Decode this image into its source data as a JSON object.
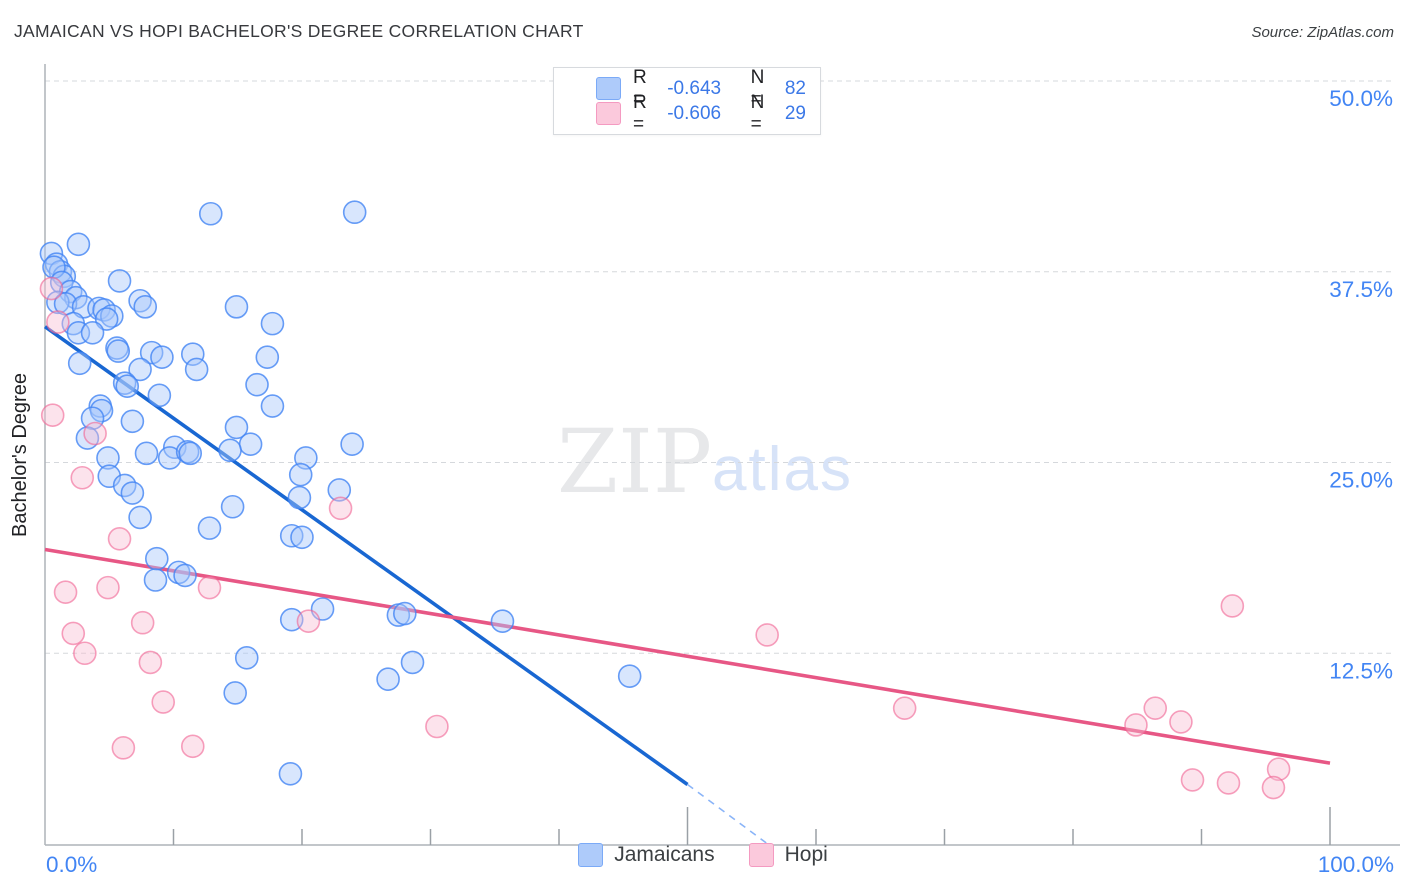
{
  "header": {
    "title": "JAMAICAN VS HOPI BACHELOR'S DEGREE CORRELATION CHART",
    "source": "Source: ZipAtlas.com"
  },
  "legend_box": {
    "rows": [
      {
        "series": "Jamaicans",
        "r_label": "R =",
        "r_value": "-0.643",
        "n_label": "N =",
        "n_value": "82"
      },
      {
        "series": "Hopi",
        "r_label": "R =",
        "r_value": "-0.606",
        "n_label": "N =",
        "n_value": "29"
      }
    ]
  },
  "watermark": {
    "zip": "ZIP",
    "atlas": "atlas"
  },
  "axes": {
    "y_label": "Bachelor's Degree",
    "x_min_label": "0.0%",
    "x_max_label": "100.0%",
    "y_ticks": [
      {
        "value": 50,
        "label": "50.0%"
      },
      {
        "value": 37.5,
        "label": "37.5%"
      },
      {
        "value": 25,
        "label": "25.0%"
      },
      {
        "value": 12.5,
        "label": "12.5%"
      }
    ]
  },
  "bottom_legend": [
    {
      "label": "Jamaicans",
      "color": "blue"
    },
    {
      "label": "Hopi",
      "color": "pink"
    }
  ],
  "colors": {
    "blue_fill": "#a8c7fa",
    "blue_stroke": "#4285f4",
    "pink_fill": "#f9bcd2",
    "pink_stroke": "#f06292",
    "blue_line": "#1967d2",
    "blue_line_dash": "#8ab4f8",
    "pink_line": "#e75785",
    "grid": "#d5d8dc",
    "axis": "#aeb3b9",
    "tick": "#9aa0a6",
    "tick_label": "#4285f4"
  },
  "chart_data": {
    "type": "scatter",
    "title": "JAMAICAN VS HOPI BACHELOR'S DEGREE CORRELATION CHART",
    "xlabel_range": [
      0,
      100
    ],
    "ylabel": "Bachelor's Degree",
    "xlim": [
      0,
      100
    ],
    "ylim": [
      0,
      52
    ],
    "grid": "horizontal-dashed",
    "x_tick_step_pct": 10,
    "series": [
      {
        "name": "Jamaicans",
        "R": -0.643,
        "N": 82,
        "points": [
          [
            12.9,
            41.3
          ],
          [
            24.1,
            41.4
          ],
          [
            2.6,
            39.3
          ],
          [
            0.5,
            38.7
          ],
          [
            0.9,
            38.0
          ],
          [
            1.2,
            37.5
          ],
          [
            1.5,
            37.2
          ],
          [
            0.7,
            37.8
          ],
          [
            5.8,
            36.9
          ],
          [
            1.3,
            36.8
          ],
          [
            2.0,
            36.2
          ],
          [
            2.4,
            35.8
          ],
          [
            1.0,
            35.5
          ],
          [
            1.6,
            35.4
          ],
          [
            3.0,
            35.2
          ],
          [
            4.2,
            35.1
          ],
          [
            4.6,
            35.0
          ],
          [
            5.2,
            34.6
          ],
          [
            7.4,
            35.6
          ],
          [
            7.8,
            35.2
          ],
          [
            14.9,
            35.2
          ],
          [
            2.2,
            34.1
          ],
          [
            4.8,
            34.4
          ],
          [
            17.7,
            34.1
          ],
          [
            2.6,
            33.5
          ],
          [
            3.7,
            33.5
          ],
          [
            5.6,
            32.5
          ],
          [
            5.7,
            32.3
          ],
          [
            8.3,
            32.2
          ],
          [
            9.1,
            31.9
          ],
          [
            11.5,
            32.1
          ],
          [
            17.3,
            31.9
          ],
          [
            2.7,
            31.5
          ],
          [
            7.4,
            31.1
          ],
          [
            11.8,
            31.1
          ],
          [
            6.2,
            30.2
          ],
          [
            6.4,
            30.0
          ],
          [
            8.9,
            29.4
          ],
          [
            16.5,
            30.1
          ],
          [
            4.3,
            28.7
          ],
          [
            4.4,
            28.4
          ],
          [
            3.7,
            27.9
          ],
          [
            6.8,
            27.7
          ],
          [
            17.7,
            28.7
          ],
          [
            14.9,
            27.3
          ],
          [
            3.3,
            26.6
          ],
          [
            16.0,
            26.2
          ],
          [
            23.9,
            26.2
          ],
          [
            10.1,
            26.0
          ],
          [
            14.4,
            25.8
          ],
          [
            4.9,
            25.3
          ],
          [
            7.9,
            25.6
          ],
          [
            9.7,
            25.3
          ],
          [
            11.1,
            25.7
          ],
          [
            11.3,
            25.6
          ],
          [
            20.3,
            25.3
          ],
          [
            19.9,
            24.2
          ],
          [
            5.0,
            24.1
          ],
          [
            6.2,
            23.5
          ],
          [
            6.8,
            23.0
          ],
          [
            22.9,
            23.2
          ],
          [
            19.8,
            22.7
          ],
          [
            14.6,
            22.1
          ],
          [
            7.4,
            21.4
          ],
          [
            12.8,
            20.7
          ],
          [
            19.2,
            20.2
          ],
          [
            20.0,
            20.1
          ],
          [
            8.7,
            18.7
          ],
          [
            8.6,
            17.3
          ],
          [
            10.4,
            17.8
          ],
          [
            10.9,
            17.6
          ],
          [
            27.5,
            15.0
          ],
          [
            28.0,
            15.1
          ],
          [
            35.6,
            14.6
          ],
          [
            19.2,
            14.7
          ],
          [
            21.6,
            15.4
          ],
          [
            15.7,
            12.2
          ],
          [
            28.6,
            11.9
          ],
          [
            45.5,
            11.0
          ],
          [
            26.7,
            10.8
          ],
          [
            14.8,
            9.9
          ],
          [
            19.1,
            4.6
          ]
        ]
      },
      {
        "name": "Hopi",
        "R": -0.606,
        "N": 29,
        "points": [
          [
            0.5,
            36.4
          ],
          [
            1.0,
            34.2
          ],
          [
            0.6,
            28.1
          ],
          [
            3.9,
            26.9
          ],
          [
            2.9,
            24.0
          ],
          [
            5.8,
            20.0
          ],
          [
            12.8,
            16.8
          ],
          [
            1.6,
            16.5
          ],
          [
            4.9,
            16.8
          ],
          [
            2.2,
            13.8
          ],
          [
            3.1,
            12.5
          ],
          [
            7.6,
            14.5
          ],
          [
            8.2,
            11.9
          ],
          [
            9.2,
            9.3
          ],
          [
            6.1,
            6.3
          ],
          [
            11.5,
            6.4
          ],
          [
            23.0,
            22.0
          ],
          [
            20.5,
            14.6
          ],
          [
            30.5,
            7.7
          ],
          [
            56.2,
            13.7
          ],
          [
            66.9,
            8.9
          ],
          [
            92.4,
            15.6
          ],
          [
            84.9,
            7.8
          ],
          [
            86.4,
            8.9
          ],
          [
            88.4,
            8.0
          ],
          [
            89.3,
            4.2
          ],
          [
            92.1,
            4.0
          ],
          [
            96.0,
            4.9
          ],
          [
            95.6,
            3.7
          ]
        ]
      }
    ],
    "trend_lines": [
      {
        "series": "Jamaicans",
        "style": "solid",
        "from": [
          0,
          33.9
        ],
        "to": [
          50.0,
          3.9
        ]
      },
      {
        "series": "Jamaicans",
        "style": "dashed",
        "from": [
          50.0,
          3.9
        ],
        "to": [
          56.4,
          -0.1
        ]
      },
      {
        "series": "Hopi",
        "style": "solid",
        "from": [
          0,
          19.3
        ],
        "to": [
          100,
          5.3
        ]
      }
    ],
    "legend_position": "bottom-center"
  }
}
